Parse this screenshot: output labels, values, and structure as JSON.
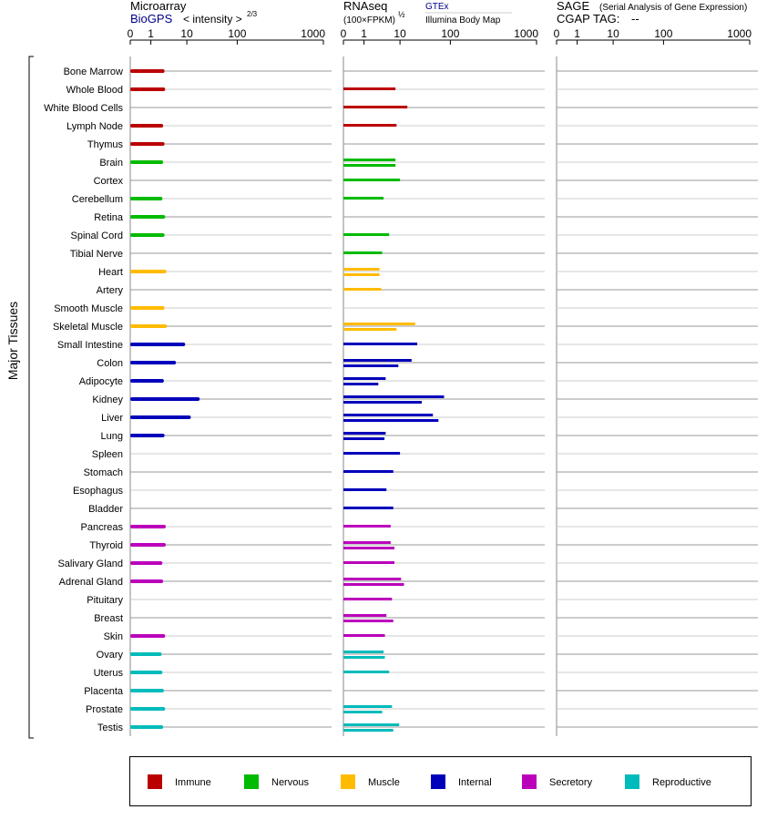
{
  "headers": {
    "microarray": {
      "title": "Microarray",
      "source": "BioGPS",
      "scale_label": "< intensity >",
      "scale_exp": "2/3"
    },
    "rnaseq": {
      "title": "RNAseq",
      "source": "GTEx",
      "source2": "Illumina Body Map",
      "scale_label": "(100×FPKM)",
      "scale_exp": "½"
    },
    "sage": {
      "title": "SAGE",
      "subtitle": "(Serial Analysis of Gene Expression)",
      "tag_label": "CGAP TAG:",
      "tag_value": "--"
    }
  },
  "side_label": "Major Tissues",
  "chart_data": {
    "type": "bar",
    "x_ticks": [
      "0",
      "1",
      "10",
      "100",
      "1000"
    ],
    "tissues": [
      {
        "name": "Bone Marrow",
        "group": "Immune",
        "microarray": 2.4,
        "rnaseq": []
      },
      {
        "name": "Whole Blood",
        "group": "Immune",
        "microarray": 2.5,
        "rnaseq": [
          7.5
        ]
      },
      {
        "name": "White Blood Cells",
        "group": "Immune",
        "microarray": null,
        "rnaseq": [
          14
        ]
      },
      {
        "name": "Lymph Node",
        "group": "Immune",
        "microarray": 2.2,
        "rnaseq": [
          8
        ]
      },
      {
        "name": "Thymus",
        "group": "Immune",
        "microarray": 2.4,
        "rnaseq": []
      },
      {
        "name": "Brain",
        "group": "Nervous",
        "microarray": 2.2,
        "rnaseq": [
          7.5,
          7.5
        ]
      },
      {
        "name": "Cortex",
        "group": "Nervous",
        "microarray": null,
        "rnaseq": [
          10
        ]
      },
      {
        "name": "Cerebellum",
        "group": "Nervous",
        "microarray": 2.1,
        "rnaseq": [
          3.5
        ]
      },
      {
        "name": "Retina",
        "group": "Nervous",
        "microarray": 2.5,
        "rnaseq": []
      },
      {
        "name": "Spinal Cord",
        "group": "Nervous",
        "microarray": 2.4,
        "rnaseq": [
          5
        ]
      },
      {
        "name": "Tibial Nerve",
        "group": "Nervous",
        "microarray": null,
        "rnaseq": [
          3.2
        ]
      },
      {
        "name": "Heart",
        "group": "Muscle",
        "microarray": 2.7,
        "rnaseq": [
          2.7,
          2.7
        ]
      },
      {
        "name": "Artery",
        "group": "Muscle",
        "microarray": null,
        "rnaseq": [
          3
        ]
      },
      {
        "name": "Smooth Muscle",
        "group": "Muscle",
        "microarray": 2.4,
        "rnaseq": []
      },
      {
        "name": "Skeletal Muscle",
        "group": "Muscle",
        "microarray": 2.8,
        "rnaseq": [
          20,
          8
        ]
      },
      {
        "name": "Small Intestine",
        "group": "Internal",
        "microarray": 9,
        "rnaseq": [
          22
        ]
      },
      {
        "name": "Colon",
        "group": "Internal",
        "microarray": 5,
        "rnaseq": [
          17,
          9
        ]
      },
      {
        "name": "Adipocyte",
        "group": "Internal",
        "microarray": 2.3,
        "rnaseq": [
          4,
          2.5
        ]
      },
      {
        "name": "Kidney",
        "group": "Internal",
        "microarray": 18,
        "rnaseq": [
          75,
          27
        ]
      },
      {
        "name": "Liver",
        "group": "Internal",
        "microarray": 12,
        "rnaseq": [
          45,
          58
        ]
      },
      {
        "name": "Lung",
        "group": "Internal",
        "microarray": 2.4,
        "rnaseq": [
          4,
          3.7
        ]
      },
      {
        "name": "Spleen",
        "group": "Internal",
        "microarray": null,
        "rnaseq": [
          10
        ]
      },
      {
        "name": "Stomach",
        "group": "Internal",
        "microarray": null,
        "rnaseq": [
          6.5
        ]
      },
      {
        "name": "Esophagus",
        "group": "Internal",
        "microarray": null,
        "rnaseq": [
          4.2
        ]
      },
      {
        "name": "Bladder",
        "group": "Internal",
        "microarray": null,
        "rnaseq": [
          6.5
        ]
      },
      {
        "name": "Pancreas",
        "group": "Secretory",
        "microarray": 2.6,
        "rnaseq": [
          5.5
        ]
      },
      {
        "name": "Thyroid",
        "group": "Secretory",
        "microarray": 2.6,
        "rnaseq": [
          5.5,
          7
        ]
      },
      {
        "name": "Salivary Gland",
        "group": "Secretory",
        "microarray": 2.1,
        "rnaseq": [
          7
        ]
      },
      {
        "name": "Adrenal Gland",
        "group": "Secretory",
        "microarray": 2.2,
        "rnaseq": [
          10.5,
          12
        ]
      },
      {
        "name": "Pituitary",
        "group": "Secretory",
        "microarray": null,
        "rnaseq": [
          6
        ]
      },
      {
        "name": "Breast",
        "group": "Secretory",
        "microarray": null,
        "rnaseq": [
          4.2,
          6.5
        ]
      },
      {
        "name": "Skin",
        "group": "Secretory",
        "microarray": 2.5,
        "rnaseq": [
          3.8
        ]
      },
      {
        "name": "Ovary",
        "group": "Reproductive",
        "microarray": 2,
        "rnaseq": [
          3.5,
          3.8
        ]
      },
      {
        "name": "Uterus",
        "group": "Reproductive",
        "microarray": 2.1,
        "rnaseq": [
          5
        ]
      },
      {
        "name": "Placenta",
        "group": "Reproductive",
        "microarray": 2.3,
        "rnaseq": []
      },
      {
        "name": "Prostate",
        "group": "Reproductive",
        "microarray": 2.5,
        "rnaseq": [
          6,
          3.2
        ]
      },
      {
        "name": "Testis",
        "group": "Reproductive",
        "microarray": 2.2,
        "rnaseq": [
          9.5,
          6.5
        ]
      }
    ],
    "legend": [
      {
        "label": "Immune",
        "color": "#bb0000"
      },
      {
        "label": "Nervous",
        "color": "#00bb00"
      },
      {
        "label": "Muscle",
        "color": "#ffbb00"
      },
      {
        "label": "Internal",
        "color": "#0000bb"
      },
      {
        "label": "Secretory",
        "color": "#bb00bb"
      },
      {
        "label": "Reproductive",
        "color": "#00bbbb"
      }
    ]
  }
}
